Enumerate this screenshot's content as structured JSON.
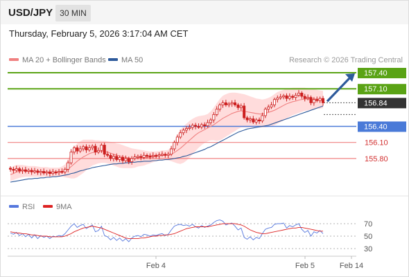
{
  "header": {
    "symbol": "USD/JPY",
    "timeframe": "30 MIN",
    "datetime": "Thursday, February 5, 2026 3:17:04 AM CET"
  },
  "colors": {
    "ma20": "#f08080",
    "ma50": "#2d5a9b",
    "resistance": "#5aa315",
    "pivot": "#4a7ad8",
    "support": "#f08080",
    "current": "#333333",
    "arrow": "#2d5a9b",
    "candle": "#cc1f1f",
    "bollinger_fill": "#ffd0d0",
    "rsi": "#5577dd",
    "rsi_ma": "#dd2222"
  },
  "chart_data": [
    {
      "type": "candlestick",
      "legend": [
        {
          "label": "MA 20 + Bollinger Bands",
          "color": "#f08080"
        },
        {
          "label": "MA 50",
          "color": "#2d5a9b"
        }
      ],
      "credit": "Research © 2026 Trading Central",
      "ylim": [
        155.4,
        157.55
      ],
      "levels": [
        {
          "value": 157.4,
          "label": "157.40",
          "kind": "resistance"
        },
        {
          "value": 157.1,
          "label": "157.10",
          "kind": "resistance"
        },
        {
          "value": 156.84,
          "label": "156.84",
          "kind": "current"
        },
        {
          "value": 156.4,
          "label": "156.40",
          "kind": "pivot"
        },
        {
          "value": 156.1,
          "label": "156.10",
          "kind": "support"
        },
        {
          "value": 155.8,
          "label": "155.80",
          "kind": "support"
        }
      ],
      "close": [
        155.6,
        155.58,
        155.61,
        155.57,
        155.59,
        155.56,
        155.58,
        155.55,
        155.57,
        155.54,
        155.56,
        155.53,
        155.55,
        155.52,
        155.55,
        155.54,
        155.56,
        155.55,
        155.6,
        155.72,
        155.92,
        156.0,
        155.94,
        155.98,
        156.02,
        155.96,
        156.0,
        156.03,
        155.92,
        155.95,
        156.05,
        155.88,
        155.86,
        155.8,
        155.84,
        155.78,
        155.82,
        155.76,
        155.8,
        155.74,
        155.8,
        155.83,
        155.84,
        155.82,
        155.86,
        155.85,
        155.84,
        155.86,
        155.85,
        155.87,
        155.88,
        155.86,
        155.88,
        155.98,
        156.1,
        156.2,
        156.28,
        156.33,
        156.36,
        156.38,
        156.42,
        156.4,
        156.39,
        156.43,
        156.41,
        156.47,
        156.52,
        156.62,
        156.72,
        156.8,
        156.84,
        156.8,
        156.82,
        156.84,
        156.8,
        156.75,
        156.78,
        156.56,
        156.52,
        156.54,
        156.48,
        156.52,
        156.5,
        156.6,
        156.72,
        156.76,
        156.8,
        156.9,
        156.93,
        156.95,
        156.97,
        156.92,
        156.96,
        156.94,
        156.98,
        157.02,
        156.96,
        156.92,
        156.94,
        156.84,
        156.9,
        156.88,
        156.92,
        156.84
      ],
      "ma20": [
        155.5,
        155.52,
        155.55,
        155.56,
        155.57,
        155.57,
        155.57,
        155.57,
        155.56,
        155.56,
        155.55,
        155.55,
        155.55,
        155.55,
        155.55,
        155.55,
        155.55,
        155.56,
        155.57,
        155.6,
        155.65,
        155.7,
        155.75,
        155.79,
        155.83,
        155.86,
        155.89,
        155.91,
        155.92,
        155.93,
        155.93,
        155.93,
        155.92,
        155.9,
        155.88,
        155.86,
        155.85,
        155.83,
        155.82,
        155.81,
        155.8,
        155.8,
        155.81,
        155.81,
        155.81,
        155.82,
        155.82,
        155.83,
        155.84,
        155.85,
        155.86,
        155.86,
        155.87,
        155.88,
        155.91,
        155.95,
        155.99,
        156.04,
        156.09,
        156.14,
        156.19,
        156.24,
        156.28,
        156.31,
        156.34,
        156.37,
        156.4,
        156.43,
        156.47,
        156.51,
        156.55,
        156.58,
        156.61,
        156.64,
        156.66,
        156.68,
        156.69,
        156.68,
        156.67,
        156.66,
        156.65,
        156.64,
        156.63,
        156.63,
        156.64,
        156.66,
        156.68,
        156.7,
        156.73,
        156.76,
        156.79,
        156.82,
        156.84,
        156.86,
        156.87,
        156.89,
        156.9,
        156.91,
        156.91,
        156.91,
        156.91,
        156.91,
        156.9,
        156.9
      ],
      "bb_upper": [
        155.62,
        155.66,
        155.68,
        155.68,
        155.68,
        155.67,
        155.66,
        155.66,
        155.66,
        155.65,
        155.64,
        155.64,
        155.64,
        155.63,
        155.63,
        155.63,
        155.63,
        155.65,
        155.69,
        155.79,
        155.92,
        156.02,
        156.08,
        156.12,
        156.15,
        156.15,
        156.15,
        156.15,
        156.14,
        156.14,
        156.13,
        156.13,
        156.12,
        156.11,
        156.1,
        156.08,
        156.07,
        156.05,
        156.03,
        156.01,
        155.99,
        155.98,
        155.97,
        155.96,
        155.95,
        155.94,
        155.93,
        155.93,
        155.93,
        155.94,
        155.95,
        155.95,
        155.96,
        156.02,
        156.12,
        156.24,
        156.33,
        156.4,
        156.45,
        156.5,
        156.54,
        156.57,
        156.59,
        156.6,
        156.61,
        156.63,
        156.68,
        156.75,
        156.83,
        156.91,
        156.97,
        157.0,
        157.02,
        157.03,
        157.03,
        157.02,
        157.01,
        157.0,
        156.98,
        156.96,
        156.94,
        156.92,
        156.91,
        156.9,
        156.91,
        156.93,
        156.96,
        157.0,
        157.04,
        157.06,
        157.08,
        157.1,
        157.11,
        157.12,
        157.12,
        157.12,
        157.12,
        157.12,
        157.11,
        157.1,
        157.09,
        157.08,
        157.07,
        157.06
      ],
      "bb_lower": [
        155.38,
        155.4,
        155.42,
        155.44,
        155.45,
        155.46,
        155.46,
        155.46,
        155.46,
        155.46,
        155.46,
        155.46,
        155.46,
        155.46,
        155.46,
        155.46,
        155.46,
        155.46,
        155.45,
        155.44,
        155.43,
        155.43,
        155.45,
        155.49,
        155.53,
        155.58,
        155.63,
        155.67,
        155.69,
        155.71,
        155.72,
        155.72,
        155.71,
        155.69,
        155.67,
        155.65,
        155.63,
        155.62,
        155.62,
        155.62,
        155.62,
        155.63,
        155.65,
        155.66,
        155.67,
        155.69,
        155.71,
        155.73,
        155.75,
        155.76,
        155.77,
        155.77,
        155.77,
        155.75,
        155.73,
        155.71,
        155.7,
        155.72,
        155.76,
        155.82,
        155.88,
        155.94,
        156.0,
        156.05,
        156.09,
        156.12,
        156.14,
        156.14,
        156.13,
        156.14,
        156.17,
        156.21,
        156.24,
        156.28,
        156.31,
        156.35,
        156.38,
        156.38,
        156.38,
        156.38,
        156.38,
        156.38,
        156.38,
        156.38,
        156.38,
        156.39,
        156.4,
        156.42,
        156.45,
        156.48,
        156.51,
        156.55,
        156.58,
        156.61,
        156.63,
        156.65,
        156.67,
        156.69,
        156.7,
        156.71,
        156.72,
        156.73,
        156.73,
        156.74
      ],
      "ma50": [
        155.36,
        155.37,
        155.38,
        155.39,
        155.4,
        155.41,
        155.42,
        155.42,
        155.43,
        155.43,
        155.44,
        155.44,
        155.45,
        155.45,
        155.46,
        155.46,
        155.47,
        155.48,
        155.49,
        155.5,
        155.52,
        155.53,
        155.55,
        155.57,
        155.58,
        155.6,
        155.61,
        155.63,
        155.64,
        155.65,
        155.66,
        155.67,
        155.68,
        155.69,
        155.7,
        155.7,
        155.71,
        155.71,
        155.72,
        155.72,
        155.73,
        155.73,
        155.74,
        155.74,
        155.75,
        155.75,
        155.75,
        155.76,
        155.76,
        155.77,
        155.77,
        155.78,
        155.78,
        155.79,
        155.8,
        155.81,
        155.82,
        155.84,
        155.85,
        155.87,
        155.89,
        155.91,
        155.93,
        155.95,
        155.97,
        156.0,
        156.02,
        156.05,
        156.08,
        156.11,
        156.14,
        156.17,
        156.2,
        156.23,
        156.26,
        156.29,
        156.31,
        156.33,
        156.35,
        156.36,
        156.37,
        156.38,
        156.39,
        156.4,
        156.41,
        156.42,
        156.44,
        156.46,
        156.48,
        156.5,
        156.52,
        156.54,
        156.56,
        156.58,
        156.6,
        156.62,
        156.64,
        156.66,
        156.68,
        156.7,
        156.72,
        156.74,
        156.76,
        156.78
      ],
      "x_ticks": [
        "Feb 4",
        "Feb 5",
        "Feb 14"
      ],
      "forecast_target": 157.4
    },
    {
      "type": "line",
      "legend": [
        {
          "label": "RSI",
          "color": "#5577dd"
        },
        {
          "label": "9MA",
          "color": "#dd2222"
        }
      ],
      "ylim": [
        20,
        80
      ],
      "y_ticks": [
        "70",
        "50",
        "30"
      ],
      "rsi": [
        55,
        53,
        56,
        51,
        54,
        49,
        53,
        47,
        52,
        46,
        51,
        48,
        50,
        46,
        50,
        49,
        51,
        50,
        54,
        60,
        66,
        70,
        64,
        67,
        69,
        62,
        65,
        68,
        57,
        59,
        66,
        51,
        49,
        44,
        48,
        43,
        47,
        42,
        46,
        41,
        47,
        50,
        51,
        49,
        53,
        52,
        50,
        52,
        51,
        53,
        54,
        51,
        53,
        60,
        66,
        68,
        69,
        67,
        68,
        66,
        69,
        65,
        63,
        67,
        64,
        66,
        68,
        72,
        75,
        76,
        74,
        68,
        70,
        71,
        66,
        60,
        63,
        48,
        45,
        49,
        44,
        48,
        46,
        54,
        61,
        63,
        64,
        69,
        70,
        70,
        71,
        63,
        67,
        65,
        68,
        70,
        61,
        56,
        59,
        50,
        57,
        55,
        59,
        54
      ],
      "rsi_ma": [
        57,
        56,
        55,
        55,
        54,
        54,
        53,
        52,
        52,
        51,
        50,
        50,
        50,
        49,
        49,
        49,
        49,
        49,
        50,
        52,
        54,
        57,
        59,
        61,
        63,
        64,
        65,
        66,
        65,
        64,
        63,
        61,
        59,
        57,
        55,
        53,
        51,
        49,
        47,
        46,
        46,
        46,
        46,
        47,
        47,
        48,
        49,
        50,
        50,
        51,
        51,
        52,
        52,
        53,
        54,
        56,
        58,
        60,
        62,
        63,
        64,
        65,
        65,
        65,
        65,
        65,
        66,
        67,
        68,
        69,
        70,
        70,
        70,
        70,
        70,
        69,
        68,
        66,
        63,
        60,
        58,
        56,
        55,
        54,
        54,
        55,
        56,
        57,
        58,
        59,
        60,
        61,
        62,
        63,
        63,
        64,
        64,
        63,
        62,
        61,
        60,
        59,
        58,
        58
      ]
    }
  ]
}
